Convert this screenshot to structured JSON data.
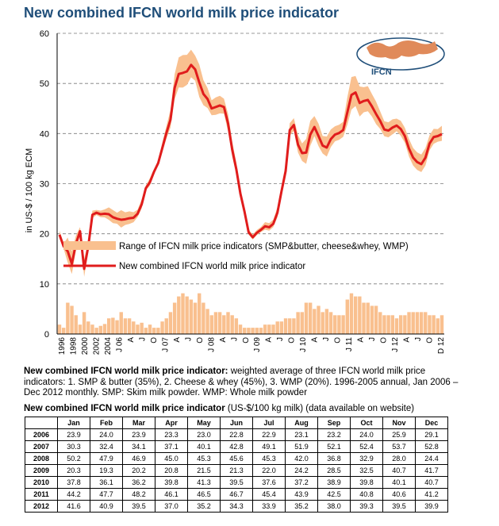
{
  "title": "New combined IFCN world milk price indicator",
  "logo_text": "IFCN",
  "chart_data": {
    "type": "line",
    "title": "New combined IFCN world milk price indicator",
    "ylabel": "in US-$ / 100 kg ECM",
    "ylim": [
      0,
      60
    ],
    "yticks": [
      0,
      10,
      20,
      30,
      40,
      50,
      60
    ],
    "grid": "horizontal dashed",
    "legend": {
      "range_label": "Range of IFCN milk price indicators (SMP&butter, cheese&whey, WMP)",
      "line_label": "New combined IFCN world milk price indicator",
      "placement": "middle"
    },
    "colors": {
      "range": "#f9c08f",
      "line": "#e01c1c",
      "bars": "#f9c08f",
      "title": "#1f4e79"
    },
    "x_labels": [
      "1996",
      "1998",
      "2000",
      "2002",
      "2004",
      "J 06",
      "A",
      "J",
      "O",
      "J 07",
      "A",
      "J",
      "O",
      "J 08",
      "A",
      "J",
      "O",
      "J 09",
      "A",
      "J",
      "O",
      "J 10",
      "A",
      "J",
      "O",
      "J 11",
      "A",
      "J",
      "O",
      "J 12",
      "A",
      "J",
      "O",
      "D 12"
    ],
    "annual_years": [
      1996,
      1997,
      1998,
      1999,
      2000,
      2001,
      2002,
      2003,
      2004,
      2005
    ],
    "annual_values": [
      19.8,
      17.5,
      16.5,
      14.0,
      18.0,
      20.5,
      13.0,
      17.5,
      23.8,
      24.2
    ],
    "monthly_series_note": "Jan 2006 - Dec 2012 monthly values as per table",
    "range_spread": [
      1.3,
      1.6,
      2.5,
      2.6,
      2.2,
      3.5,
      2.5,
      2.5,
      2.0,
      1.5,
      1.8,
      1.0,
      1.5,
      1.0,
      1.0,
      2.0,
      2.5,
      3.5,
      5.0,
      6.0,
      6.5,
      6.0,
      5.5,
      5.0,
      6.5,
      5.0,
      4.0,
      3.0,
      3.5,
      3.5,
      3.0,
      3.5,
      3.0,
      2.5,
      1.5,
      1.0,
      1.0,
      1.0,
      1.0,
      1.0,
      1.5,
      1.5,
      1.5,
      2.0,
      2.0,
      2.5,
      2.5,
      2.5,
      3.5,
      3.5,
      5.0,
      5.0,
      4.0,
      4.5,
      3.5,
      4.0,
      3.5,
      3.0,
      3.0,
      3.0,
      5.5,
      6.5,
      6.0,
      6.0,
      5.0,
      5.0,
      4.5,
      4.5,
      3.5,
      3.0,
      3.0,
      3.0,
      2.5,
      3.0,
      3.0,
      3.5,
      3.5,
      3.5,
      3.5,
      3.5,
      3.0,
      3.0,
      2.5,
      3.0
    ]
  },
  "description": {
    "bold": "New combined IFCN world milk price indicator:",
    "text": " weighted average of three IFCN world milk price indicators: 1. SMP & butter (35%), 2. Cheese & whey (45%), 3. WMP (20%). 1996-2005 annual, Jan 2006 – Dec 2012 monthly. SMP: Skim milk powder. WMP: Whole milk powder"
  },
  "table": {
    "title_bold": "New combined IFCN world milk price indicator",
    "title_rest": " (US-$/100 kg milk) (data available on website)",
    "months": [
      "Jan",
      "Feb",
      "Mar",
      "Apr",
      "May",
      "Jun",
      "Jul",
      "Aug",
      "Sep",
      "Oct",
      "Nov",
      "Dec"
    ],
    "rows": [
      {
        "year": "2006",
        "values": [
          "23.9",
          "24.0",
          "23.9",
          "23.3",
          "23.0",
          "22.8",
          "22.9",
          "23.1",
          "23.2",
          "24.0",
          "25.9",
          "29.1"
        ]
      },
      {
        "year": "2007",
        "values": [
          "30.3",
          "32.4",
          "34.1",
          "37.1",
          "40.1",
          "42.8",
          "49.1",
          "51.9",
          "52.1",
          "52.4",
          "53.7",
          "52.8"
        ]
      },
      {
        "year": "2008",
        "values": [
          "50.2",
          "47.9",
          "46.9",
          "45.0",
          "45.3",
          "45.6",
          "45.3",
          "42.0",
          "36.8",
          "32.9",
          "28.0",
          "24.4"
        ]
      },
      {
        "year": "2009",
        "values": [
          "20.3",
          "19.3",
          "20.2",
          "20.8",
          "21.5",
          "21.3",
          "22.0",
          "24.2",
          "28.5",
          "32.5",
          "40.7",
          "41.7"
        ]
      },
      {
        "year": "2010",
        "values": [
          "37.8",
          "36.1",
          "36.2",
          "39.8",
          "41.3",
          "39.5",
          "37.6",
          "37.2",
          "38.9",
          "39.8",
          "40.1",
          "40.7"
        ]
      },
      {
        "year": "2011",
        "values": [
          "44.2",
          "47.7",
          "48.2",
          "46.1",
          "46.5",
          "46.7",
          "45.4",
          "43.9",
          "42.5",
          "40.8",
          "40.6",
          "41.2"
        ]
      },
      {
        "year": "2012",
        "values": [
          "41.6",
          "40.9",
          "39.5",
          "37.0",
          "35.2",
          "34.3",
          "33.9",
          "35.2",
          "38.0",
          "39.3",
          "39.5",
          "39.9"
        ]
      }
    ]
  }
}
